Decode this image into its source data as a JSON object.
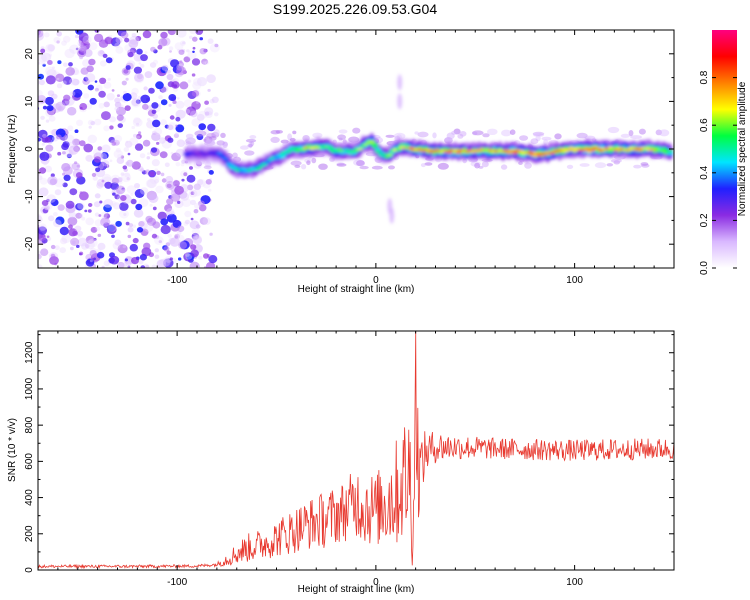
{
  "title": "S199.2025.226.09.53.G04",
  "chart_data": [
    {
      "type": "heatmap",
      "name": "spectrogram",
      "xlabel": "Height of straight line (km)",
      "ylabel": "Frequency (Hz)",
      "xlim": [
        -170,
        150
      ],
      "ylim": [
        -25,
        25
      ],
      "xticks": [
        -100,
        0,
        100
      ],
      "yticks": [
        -20,
        -10,
        0,
        10,
        20
      ],
      "colorbar": {
        "label": "Normalized spectral amplitude",
        "range": [
          0,
          1
        ],
        "ticks": [
          0.0,
          0.2,
          0.4,
          0.6,
          0.8
        ],
        "tick_labels": [
          "0.0",
          "0.2",
          "0.4",
          "0.6",
          "0.8"
        ],
        "colors": [
          "#ffffff",
          "#d9b8ff",
          "#8a2be2",
          "#2020ff",
          "#00e5ff",
          "#00ff40",
          "#ffff00",
          "#ff8000",
          "#ff0000",
          "#ff007f"
        ]
      },
      "noise_region": [
        -170,
        -85
      ],
      "ridge": {
        "x": [
          -95,
          -85,
          -78,
          -72,
          -66,
          -60,
          -54,
          -48,
          -42,
          -36,
          -30,
          -25,
          -20,
          -15,
          -10,
          -6,
          -2,
          2,
          6,
          10,
          14,
          20,
          30,
          40,
          50,
          60,
          70,
          80,
          85,
          90,
          100,
          110,
          120,
          130,
          140,
          148
        ],
        "freq": [
          -1,
          -1,
          -1,
          -4,
          -4.5,
          -4,
          -2.5,
          -1.5,
          0,
          0,
          0.5,
          0.5,
          -0.5,
          -0.5,
          -0.5,
          1,
          1.5,
          -1,
          -1.5,
          0,
          0.5,
          0,
          -0.5,
          -0.5,
          -0.5,
          -0.5,
          -0.5,
          -1,
          -1,
          -0.5,
          0,
          0,
          0,
          0,
          0,
          -0.5
        ],
        "amp": [
          0.3,
          0.25,
          0.35,
          0.5,
          0.45,
          0.5,
          0.4,
          0.5,
          0.55,
          0.65,
          0.6,
          0.55,
          0.6,
          0.5,
          0.55,
          0.6,
          0.7,
          0.5,
          0.55,
          0.6,
          0.65,
          0.75,
          0.7,
          0.75,
          0.7,
          0.75,
          0.75,
          0.8,
          0.75,
          0.7,
          0.7,
          0.85,
          0.7,
          0.75,
          0.7,
          0.6
        ]
      }
    },
    {
      "type": "line",
      "name": "snr",
      "xlabel": "Height of straight line (km)",
      "ylabel": "SNR (10 * v/v)",
      "xlim": [
        -170,
        150
      ],
      "ylim": [
        0,
        1320
      ],
      "xticks": [
        -100,
        0,
        100
      ],
      "yticks": [
        0,
        200,
        400,
        600,
        800,
        1000,
        1200
      ],
      "color": "#e8392f",
      "envelope": {
        "x": [
          -170,
          -120,
          -90,
          -80,
          -75,
          -65,
          -55,
          -45,
          -35,
          -25,
          -15,
          -10,
          -5,
          0,
          5,
          10,
          14,
          17,
          19,
          20,
          22,
          25,
          30,
          40,
          60,
          80,
          100,
          120,
          150
        ],
        "mean": [
          20,
          20,
          22,
          30,
          60,
          120,
          150,
          200,
          250,
          280,
          330,
          380,
          350,
          330,
          380,
          420,
          500,
          520,
          350,
          700,
          550,
          650,
          680,
          680,
          670,
          665,
          660,
          665,
          670
        ],
        "amp": [
          8,
          8,
          8,
          10,
          40,
          80,
          90,
          120,
          140,
          160,
          170,
          200,
          220,
          200,
          260,
          300,
          350,
          400,
          400,
          600,
          200,
          120,
          90,
          70,
          60,
          60,
          60,
          60,
          60
        ]
      },
      "peak": {
        "x": 20,
        "y": 1320
      }
    }
  ]
}
